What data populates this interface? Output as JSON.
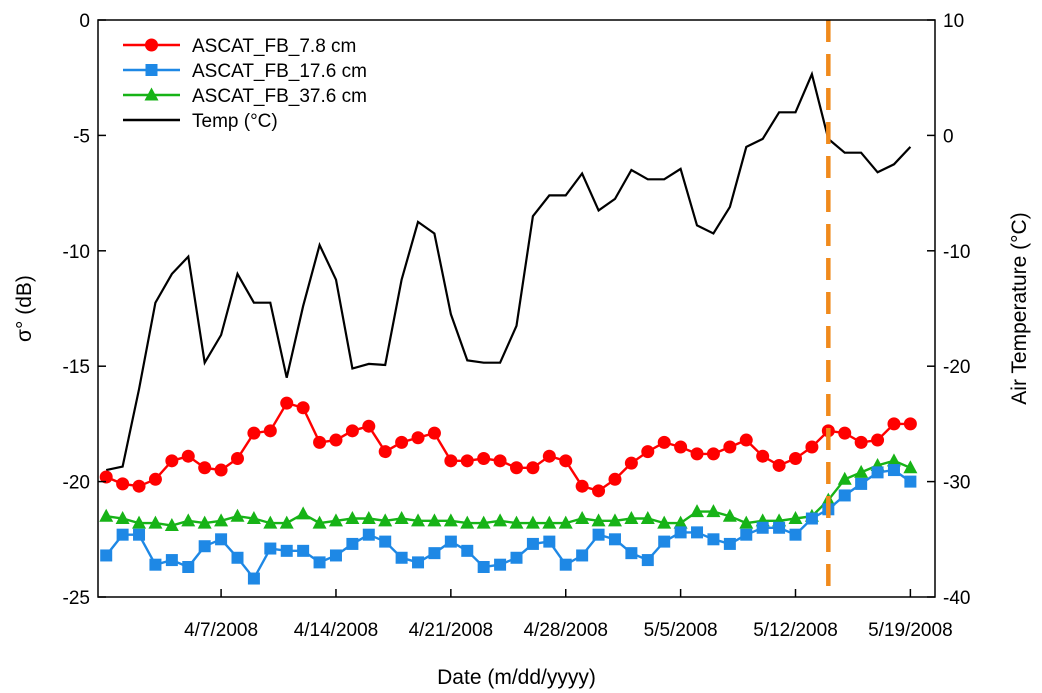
{
  "chart_data": {
    "type": "line",
    "xlabel": "Date (m/dd/yyyy)",
    "ylabel": "σ° (dB)",
    "y2label": "Air Temperature (°C)",
    "x_start": "3/31/2008",
    "x_end": "5/20/2008",
    "xlim": [
      "3/31/2008",
      "5/20/2008"
    ],
    "x_ticks": [
      "4/7/2008",
      "4/14/2008",
      "4/21/2008",
      "4/28/2008",
      "5/5/2008",
      "5/12/2008",
      "5/19/2008"
    ],
    "ylim": [
      -25,
      0
    ],
    "y_ticks": [
      "0",
      "-5",
      "-10",
      "-15",
      "-20",
      "-25"
    ],
    "y2lim": [
      -40,
      10
    ],
    "y2_ticks": [
      "10",
      "0",
      "-10",
      "-20",
      "-30",
      "-40"
    ],
    "legend": "top-left",
    "grid": false,
    "event_line": {
      "date": "5/14/2008",
      "color": "#F08A1C"
    },
    "series": [
      {
        "name": "ASCAT_FB_7.8 cm",
        "axis": "left",
        "color": "#FF0000",
        "marker": "circle",
        "points": [
          [
            "3/31/2008",
            -19.8
          ],
          [
            "4/1/2008",
            -20.1
          ],
          [
            "4/2/2008",
            -20.2
          ],
          [
            "4/3/2008",
            -19.9
          ],
          [
            "4/4/2008",
            -19.1
          ],
          [
            "4/5/2008",
            -18.9
          ],
          [
            "4/6/2008",
            -19.4
          ],
          [
            "4/7/2008",
            -19.5
          ],
          [
            "4/8/2008",
            -19.0
          ],
          [
            "4/9/2008",
            -17.9
          ],
          [
            "4/10/2008",
            -17.8
          ],
          [
            "4/11/2008",
            -16.6
          ],
          [
            "4/12/2008",
            -16.8
          ],
          [
            "4/13/2008",
            -18.3
          ],
          [
            "4/14/2008",
            -18.2
          ],
          [
            "4/15/2008",
            -17.8
          ],
          [
            "4/16/2008",
            -17.6
          ],
          [
            "4/17/2008",
            -18.7
          ],
          [
            "4/18/2008",
            -18.3
          ],
          [
            "4/19/2008",
            -18.1
          ],
          [
            "4/20/2008",
            -17.9
          ],
          [
            "4/21/2008",
            -19.1
          ],
          [
            "4/22/2008",
            -19.1
          ],
          [
            "4/23/2008",
            -19.0
          ],
          [
            "4/24/2008",
            -19.1
          ],
          [
            "4/25/2008",
            -19.4
          ],
          [
            "4/26/2008",
            -19.4
          ],
          [
            "4/27/2008",
            -18.9
          ],
          [
            "4/28/2008",
            -19.1
          ],
          [
            "4/29/2008",
            -20.2
          ],
          [
            "4/30/2008",
            -20.4
          ],
          [
            "5/1/2008",
            -19.9
          ],
          [
            "5/2/2008",
            -19.2
          ],
          [
            "5/3/2008",
            -18.7
          ],
          [
            "5/4/2008",
            -18.3
          ],
          [
            "5/5/2008",
            -18.5
          ],
          [
            "5/6/2008",
            -18.8
          ],
          [
            "5/7/2008",
            -18.8
          ],
          [
            "5/8/2008",
            -18.5
          ],
          [
            "5/9/2008",
            -18.2
          ],
          [
            "5/10/2008",
            -18.9
          ],
          [
            "5/11/2008",
            -19.3
          ],
          [
            "5/12/2008",
            -19.0
          ],
          [
            "5/13/2008",
            -18.5
          ],
          [
            "5/14/2008",
            -17.8
          ],
          [
            "5/15/2008",
            -17.9
          ],
          [
            "5/16/2008",
            -18.3
          ],
          [
            "5/17/2008",
            -18.2
          ],
          [
            "5/18/2008",
            -17.5
          ],
          [
            "5/19/2008",
            -17.5
          ]
        ]
      },
      {
        "name": "ASCAT_FB_17.6 cm",
        "axis": "left",
        "color": "#1E88E5",
        "marker": "square",
        "points": [
          [
            "3/31/2008",
            -23.2
          ],
          [
            "4/1/2008",
            -22.3
          ],
          [
            "4/2/2008",
            -22.3
          ],
          [
            "4/3/2008",
            -23.6
          ],
          [
            "4/4/2008",
            -23.4
          ],
          [
            "4/5/2008",
            -23.7
          ],
          [
            "4/6/2008",
            -22.8
          ],
          [
            "4/7/2008",
            -22.5
          ],
          [
            "4/8/2008",
            -23.3
          ],
          [
            "4/9/2008",
            -24.2
          ],
          [
            "4/10/2008",
            -22.9
          ],
          [
            "4/11/2008",
            -23.0
          ],
          [
            "4/12/2008",
            -23.0
          ],
          [
            "4/13/2008",
            -23.5
          ],
          [
            "4/14/2008",
            -23.2
          ],
          [
            "4/15/2008",
            -22.7
          ],
          [
            "4/16/2008",
            -22.3
          ],
          [
            "4/17/2008",
            -22.6
          ],
          [
            "4/18/2008",
            -23.3
          ],
          [
            "4/19/2008",
            -23.5
          ],
          [
            "4/20/2008",
            -23.1
          ],
          [
            "4/21/2008",
            -22.6
          ],
          [
            "4/22/2008",
            -23.0
          ],
          [
            "4/23/2008",
            -23.7
          ],
          [
            "4/24/2008",
            -23.6
          ],
          [
            "4/25/2008",
            -23.3
          ],
          [
            "4/26/2008",
            -22.7
          ],
          [
            "4/27/2008",
            -22.6
          ],
          [
            "4/28/2008",
            -23.6
          ],
          [
            "4/29/2008",
            -23.2
          ],
          [
            "4/30/2008",
            -22.3
          ],
          [
            "5/1/2008",
            -22.5
          ],
          [
            "5/2/2008",
            -23.1
          ],
          [
            "5/3/2008",
            -23.4
          ],
          [
            "5/4/2008",
            -22.6
          ],
          [
            "5/5/2008",
            -22.2
          ],
          [
            "5/6/2008",
            -22.2
          ],
          [
            "5/7/2008",
            -22.5
          ],
          [
            "5/8/2008",
            -22.7
          ],
          [
            "5/9/2008",
            -22.3
          ],
          [
            "5/10/2008",
            -22.0
          ],
          [
            "5/11/2008",
            -22.0
          ],
          [
            "5/12/2008",
            -22.3
          ],
          [
            "5/13/2008",
            -21.6
          ],
          [
            "5/14/2008",
            -21.2
          ],
          [
            "5/15/2008",
            -20.6
          ],
          [
            "5/16/2008",
            -20.1
          ],
          [
            "5/17/2008",
            -19.6
          ],
          [
            "5/18/2008",
            -19.5
          ],
          [
            "5/19/2008",
            -20.0
          ]
        ]
      },
      {
        "name": "ASCAT_FB_37.6 cm",
        "axis": "left",
        "color": "#17B317",
        "marker": "triangle",
        "points": [
          [
            "3/31/2008",
            -21.5
          ],
          [
            "4/1/2008",
            -21.6
          ],
          [
            "4/2/2008",
            -21.8
          ],
          [
            "4/3/2008",
            -21.8
          ],
          [
            "4/4/2008",
            -21.9
          ],
          [
            "4/5/2008",
            -21.7
          ],
          [
            "4/6/2008",
            -21.8
          ],
          [
            "4/7/2008",
            -21.7
          ],
          [
            "4/8/2008",
            -21.5
          ],
          [
            "4/9/2008",
            -21.6
          ],
          [
            "4/10/2008",
            -21.8
          ],
          [
            "4/11/2008",
            -21.8
          ],
          [
            "4/12/2008",
            -21.4
          ],
          [
            "4/13/2008",
            -21.8
          ],
          [
            "4/14/2008",
            -21.7
          ],
          [
            "4/15/2008",
            -21.6
          ],
          [
            "4/16/2008",
            -21.6
          ],
          [
            "4/17/2008",
            -21.7
          ],
          [
            "4/18/2008",
            -21.6
          ],
          [
            "4/19/2008",
            -21.7
          ],
          [
            "4/20/2008",
            -21.7
          ],
          [
            "4/21/2008",
            -21.7
          ],
          [
            "4/22/2008",
            -21.8
          ],
          [
            "4/23/2008",
            -21.8
          ],
          [
            "4/24/2008",
            -21.7
          ],
          [
            "4/25/2008",
            -21.8
          ],
          [
            "4/26/2008",
            -21.8
          ],
          [
            "4/27/2008",
            -21.8
          ],
          [
            "4/28/2008",
            -21.8
          ],
          [
            "4/29/2008",
            -21.6
          ],
          [
            "4/30/2008",
            -21.7
          ],
          [
            "5/1/2008",
            -21.7
          ],
          [
            "5/2/2008",
            -21.6
          ],
          [
            "5/3/2008",
            -21.6
          ],
          [
            "5/4/2008",
            -21.8
          ],
          [
            "5/5/2008",
            -21.8
          ],
          [
            "5/6/2008",
            -21.3
          ],
          [
            "5/7/2008",
            -21.3
          ],
          [
            "5/8/2008",
            -21.5
          ],
          [
            "5/9/2008",
            -21.8
          ],
          [
            "5/10/2008",
            -21.7
          ],
          [
            "5/11/2008",
            -21.7
          ],
          [
            "5/12/2008",
            -21.6
          ],
          [
            "5/13/2008",
            -21.5
          ],
          [
            "5/14/2008",
            -20.8
          ],
          [
            "5/15/2008",
            -19.9
          ],
          [
            "5/16/2008",
            -19.6
          ],
          [
            "5/17/2008",
            -19.3
          ],
          [
            "5/18/2008",
            -19.1
          ],
          [
            "5/19/2008",
            -19.4
          ]
        ]
      },
      {
        "name": "Temp (°C)",
        "axis": "right",
        "color": "#000000",
        "marker": "none",
        "points": [
          [
            "3/31/2008",
            -29.0
          ],
          [
            "4/1/2008",
            -28.7
          ],
          [
            "4/2/2008",
            -22.0
          ],
          [
            "4/3/2008",
            -14.5
          ],
          [
            "4/4/2008",
            -12.0
          ],
          [
            "4/5/2008",
            -10.5
          ],
          [
            "4/6/2008",
            -19.7
          ],
          [
            "4/7/2008",
            -17.3
          ],
          [
            "4/8/2008",
            -12.0
          ],
          [
            "4/9/2008",
            -14.5
          ],
          [
            "4/10/2008",
            -14.5
          ],
          [
            "4/11/2008",
            -21.0
          ],
          [
            "4/12/2008",
            -14.8
          ],
          [
            "4/13/2008",
            -9.5
          ],
          [
            "4/14/2008",
            -12.5
          ],
          [
            "4/15/2008",
            -20.2
          ],
          [
            "4/16/2008",
            -19.8
          ],
          [
            "4/17/2008",
            -19.9
          ],
          [
            "4/18/2008",
            -12.5
          ],
          [
            "4/19/2008",
            -7.5
          ],
          [
            "4/20/2008",
            -8.5
          ],
          [
            "4/21/2008",
            -15.5
          ],
          [
            "4/22/2008",
            -19.5
          ],
          [
            "4/23/2008",
            -19.7
          ],
          [
            "4/24/2008",
            -19.7
          ],
          [
            "4/25/2008",
            -16.5
          ],
          [
            "4/26/2008",
            -7.0
          ],
          [
            "4/27/2008",
            -5.2
          ],
          [
            "4/28/2008",
            -5.2
          ],
          [
            "4/29/2008",
            -3.3
          ],
          [
            "4/30/2008",
            -6.5
          ],
          [
            "5/1/2008",
            -5.5
          ],
          [
            "5/2/2008",
            -3.0
          ],
          [
            "5/3/2008",
            -3.8
          ],
          [
            "5/4/2008",
            -3.8
          ],
          [
            "5/5/2008",
            -2.9
          ],
          [
            "5/6/2008",
            -7.8
          ],
          [
            "5/7/2008",
            -8.5
          ],
          [
            "5/8/2008",
            -6.2
          ],
          [
            "5/9/2008",
            -1.0
          ],
          [
            "5/10/2008",
            -0.3
          ],
          [
            "5/11/2008",
            2.0
          ],
          [
            "5/12/2008",
            2.0
          ],
          [
            "5/13/2008",
            5.3
          ],
          [
            "5/14/2008",
            -0.3
          ],
          [
            "5/15/2008",
            -1.5
          ],
          [
            "5/16/2008",
            -1.5
          ],
          [
            "5/17/2008",
            -3.2
          ],
          [
            "5/18/2008",
            -2.5
          ],
          [
            "5/19/2008",
            -1.0
          ]
        ]
      }
    ]
  }
}
